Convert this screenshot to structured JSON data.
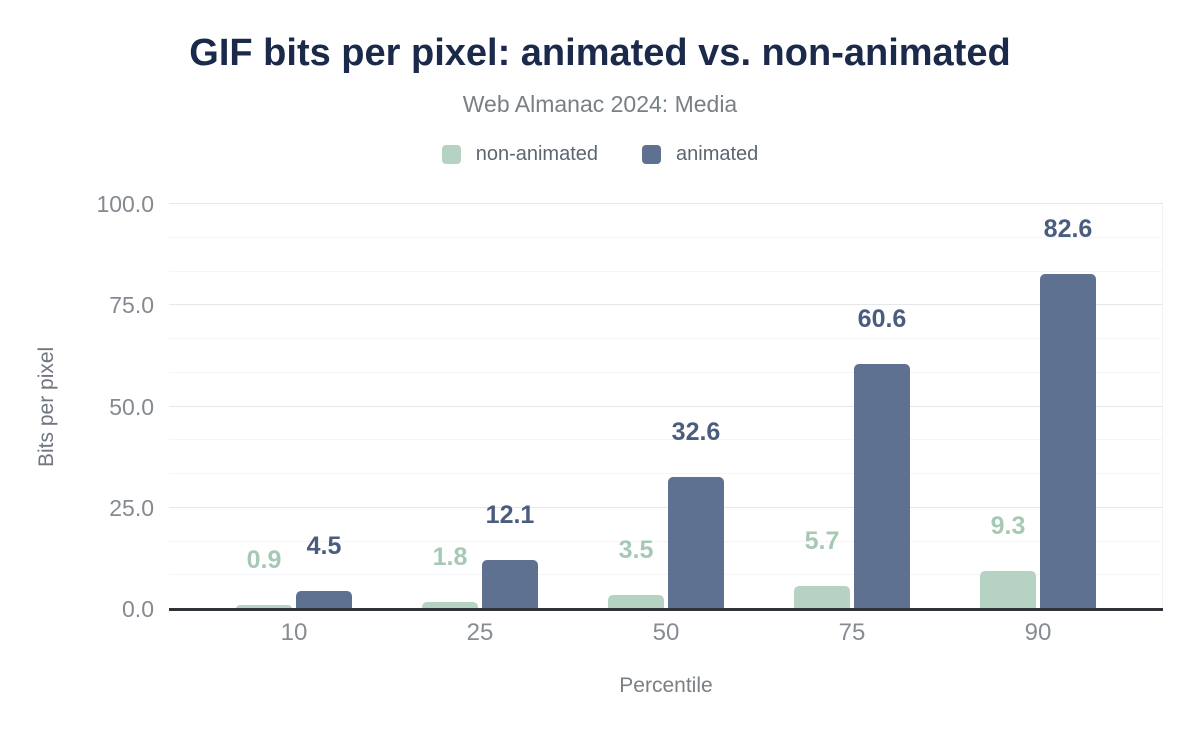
{
  "header": {
    "title": "GIF bits per pixel: animated vs. non-animated",
    "subtitle": "Web Almanac 2024: Media"
  },
  "legend": {
    "items": [
      {
        "label": "non-animated",
        "color": "#b6d2c2"
      },
      {
        "label": "animated",
        "color": "#5e7191"
      }
    ]
  },
  "chart_data": {
    "type": "bar",
    "title": "GIF bits per pixel: animated vs. non-animated",
    "subtitle": "Web Almanac 2024: Media",
    "xlabel": "Percentile",
    "ylabel": "Bits per pixel",
    "categories": [
      "10",
      "25",
      "50",
      "75",
      "90"
    ],
    "series": [
      {
        "name": "non-animated",
        "values": [
          0.9,
          1.8,
          3.5,
          5.7,
          9.3
        ],
        "color": "#b6d2c2",
        "label_color": "#a6c9b6"
      },
      {
        "name": "animated",
        "values": [
          4.5,
          12.1,
          32.6,
          60.6,
          82.6
        ],
        "color": "#5e7191",
        "label_color": "#4b5d7f"
      }
    ],
    "ylim": [
      0,
      100
    ],
    "y_major_ticks": [
      "0.0",
      "25.0",
      "50.0",
      "75.0",
      "100.0"
    ],
    "y_minor_divisions_per_major": 3,
    "grid": "horizontal",
    "legend_position": "top",
    "value_labels": "above-bars"
  },
  "colors": {
    "background": "#ffffff",
    "title_text": "#1b2a4a",
    "subtitle_text": "#797f84",
    "legend_text": "#5d6670",
    "axis_tick_text": "#848a90",
    "y_axis_title_text": "#6f767d",
    "x_axis_title_text": "#797f84",
    "axis_line": "#2f3337",
    "gridline_major": "#e6e7e9",
    "gridline_minor": "#f4f5f6"
  }
}
